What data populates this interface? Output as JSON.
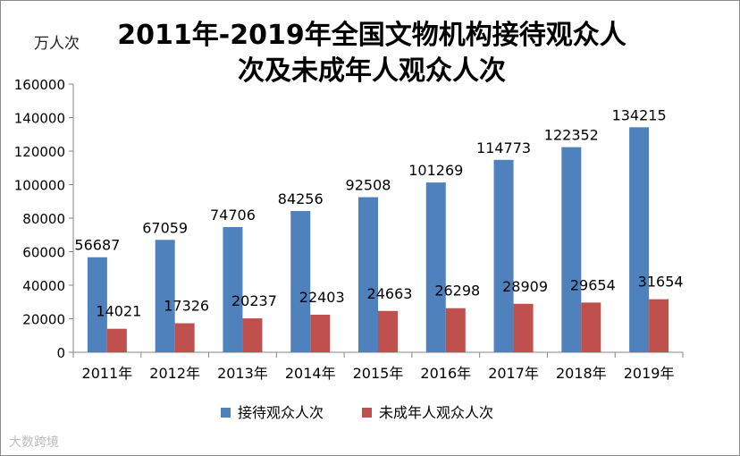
{
  "chart_data": {
    "type": "bar",
    "title_line1": "2011年-2019年全国文物机构接待观众人",
    "title_line2": "次及未成年人观众人次",
    "unit_label": "万人次",
    "categories": [
      "2011年",
      "2012年",
      "2013年",
      "2014年",
      "2015年",
      "2016年",
      "2017年",
      "2018年",
      "2019年"
    ],
    "series": [
      {
        "name": "接待观众人次",
        "color": "#4f81bd",
        "values": [
          56687,
          67059,
          74706,
          84256,
          92508,
          101269,
          114773,
          122352,
          134215
        ]
      },
      {
        "name": "未成年人观众人次",
        "color": "#c0504d",
        "values": [
          14021,
          17326,
          20237,
          22403,
          24663,
          26298,
          28909,
          29654,
          31654
        ]
      }
    ],
    "ylim": [
      0,
      160000
    ],
    "yticks": [
      0,
      20000,
      40000,
      60000,
      80000,
      100000,
      120000,
      140000,
      160000
    ],
    "grid": false,
    "legend_position": "bottom"
  },
  "watermark": "大数跨境"
}
